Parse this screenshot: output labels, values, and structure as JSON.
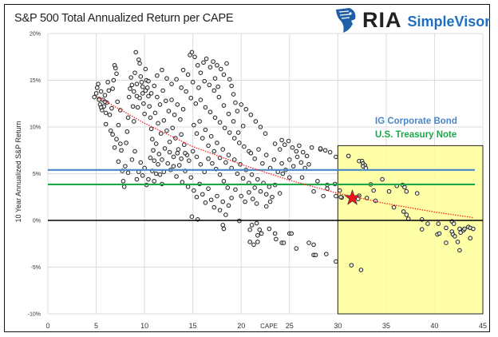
{
  "header": {
    "title": "S&P 500 Total Annualized Return per CAPE"
  },
  "logo": {
    "mark": "RIA",
    "brand": "SimpleVisor",
    "icon": "eagle-head-icon"
  },
  "chart_data": {
    "type": "scatter",
    "title": "S&P 500 Total Annualized Return per CAPE",
    "xlabel": "CAPE",
    "ylabel": "10 Year Annualized S&P Return",
    "xlim": [
      0,
      45
    ],
    "ylim": [
      -10,
      20
    ],
    "x_ticks": [
      "0",
      "5",
      "10",
      "15",
      "20",
      "25",
      "30",
      "35",
      "40",
      "45"
    ],
    "y_ticks": [
      "-10%",
      "-5%",
      "0%",
      "5%",
      "10%",
      "15%",
      "20%"
    ],
    "y_tick_values": [
      -10,
      -5,
      0,
      5,
      10,
      15,
      20
    ],
    "x_tick_values": [
      0,
      5,
      10,
      15,
      20,
      25,
      30,
      35,
      40,
      45
    ],
    "grid": true,
    "colors": {
      "points": "#222222",
      "trend": "#ff2020",
      "corporate": "#4a86c8",
      "treasury": "#1aa84a",
      "zero": "#000000",
      "highlight": "#ffff99",
      "star": "#e8141e"
    },
    "reference_lines": [
      {
        "name": "IG Corporate Bond",
        "y": 5.4,
        "color": "#4a86c8"
      },
      {
        "name": "U.S. Treasury Note",
        "y": 3.85,
        "color": "#1aa84a"
      }
    ],
    "highlight_region": {
      "x": [
        30,
        45
      ],
      "y": [
        -10,
        8
      ]
    },
    "current_value": {
      "x": 31.5,
      "y": 2.4
    },
    "trendline": [
      [
        5,
        13.3
      ],
      [
        10,
        10.4
      ],
      [
        15,
        7.9
      ],
      [
        20,
        6.0
      ],
      [
        25,
        4.3
      ],
      [
        30,
        2.9
      ],
      [
        35,
        1.8
      ],
      [
        40,
        0.9
      ],
      [
        44,
        0.3
      ]
    ],
    "points": [
      [
        4.8,
        13.2
      ],
      [
        5,
        13.6
      ],
      [
        5.1,
        14.2
      ],
      [
        5.2,
        14.6
      ],
      [
        5.3,
        13
      ],
      [
        5.4,
        12.4
      ],
      [
        5.5,
        13.8
      ],
      [
        5.6,
        11.8
      ],
      [
        5.7,
        12.9
      ],
      [
        5.8,
        12.2
      ],
      [
        5.9,
        13.4
      ],
      [
        6,
        11.5
      ],
      [
        6.1,
        12.6
      ],
      [
        6.2,
        14.8
      ],
      [
        6.3,
        13.9
      ],
      [
        5.9,
        12.7
      ],
      [
        5.5,
        12.1
      ],
      [
        5.3,
        12.9
      ],
      [
        6,
        10.3
      ],
      [
        6.4,
        11.3
      ],
      [
        6.5,
        9.6
      ],
      [
        6.6,
        12
      ],
      [
        6.7,
        14.1
      ],
      [
        6.8,
        15
      ],
      [
        6.9,
        16.6
      ],
      [
        7,
        16.3
      ],
      [
        7.1,
        15.7
      ],
      [
        7.2,
        12.7
      ],
      [
        7.3,
        10.2
      ],
      [
        7.5,
        11.8
      ],
      [
        6.7,
        9.2
      ],
      [
        6.9,
        7.8
      ],
      [
        7.1,
        8.7
      ],
      [
        7.3,
        6.3
      ],
      [
        7.5,
        8.2
      ],
      [
        7.6,
        7.5
      ],
      [
        7.7,
        5.3
      ],
      [
        7.8,
        4.2
      ],
      [
        7.9,
        3.6
      ],
      [
        8,
        5.8
      ],
      [
        8.1,
        8.3
      ],
      [
        8.2,
        9.5
      ],
      [
        8.3,
        11
      ],
      [
        8.4,
        13.2
      ],
      [
        8.5,
        14.1
      ],
      [
        8.6,
        15.3
      ],
      [
        8.7,
        14.5
      ],
      [
        8.8,
        12.2
      ],
      [
        8.9,
        10.6
      ],
      [
        9,
        15.8
      ],
      [
        9.1,
        18
      ],
      [
        9.2,
        13.3
      ],
      [
        9.3,
        12.1
      ],
      [
        9.4,
        17.2
      ],
      [
        9.5,
        16.8
      ],
      [
        9.6,
        15.4
      ],
      [
        9.7,
        14.8
      ],
      [
        9.8,
        13.6
      ],
      [
        9.9,
        12.5
      ],
      [
        10,
        11.4
      ],
      [
        10.1,
        16.2
      ],
      [
        10.2,
        15
      ],
      [
        10.3,
        14.2
      ],
      [
        10.4,
        13.3
      ],
      [
        10.5,
        12.2
      ],
      [
        10.6,
        11
      ],
      [
        10.7,
        9.8
      ],
      [
        10.8,
        8.7
      ],
      [
        10.9,
        7.5
      ],
      [
        11,
        6.4
      ],
      [
        8.3,
        5.1
      ],
      [
        8.7,
        6.5
      ],
      [
        9,
        7.4
      ],
      [
        9.2,
        4.4
      ],
      [
        9.4,
        5.2
      ],
      [
        9.6,
        6.2
      ],
      [
        9.8,
        4.8
      ],
      [
        10,
        5.6
      ],
      [
        10.2,
        3.8
      ],
      [
        10.4,
        4.4
      ],
      [
        10.6,
        6.7
      ],
      [
        10.8,
        5.3
      ],
      [
        11,
        4.2
      ],
      [
        11.2,
        5
      ],
      [
        11.4,
        6
      ],
      [
        11.6,
        4.9
      ],
      [
        11.8,
        3.9
      ],
      [
        12,
        5.2
      ],
      [
        8.9,
        13.8
      ],
      [
        9.2,
        14.6
      ],
      [
        9.5,
        13.1
      ],
      [
        9.8,
        14.3
      ],
      [
        10.1,
        13.9
      ],
      [
        10.4,
        14.9
      ],
      [
        10.7,
        13.6
      ],
      [
        11,
        14.4
      ],
      [
        11.3,
        13.2
      ],
      [
        11.6,
        12.4
      ],
      [
        11.9,
        13.9
      ],
      [
        12.2,
        12.8
      ],
      [
        12.5,
        11.7
      ],
      [
        12.8,
        12.9
      ],
      [
        13.1,
        11.3
      ],
      [
        13.4,
        12.4
      ],
      [
        13.7,
        10.8
      ],
      [
        14,
        11.9
      ],
      [
        11.1,
        11.5
      ],
      [
        11.4,
        10.4
      ],
      [
        11.7,
        9.3
      ],
      [
        12,
        10.7
      ],
      [
        12.3,
        9.6
      ],
      [
        12.6,
        8.4
      ],
      [
        12.9,
        9.9
      ],
      [
        13.2,
        8.8
      ],
      [
        13.5,
        7.6
      ],
      [
        13.8,
        9.2
      ],
      [
        14.1,
        8.1
      ],
      [
        14.4,
        7
      ],
      [
        11.2,
        8.2
      ],
      [
        11.5,
        7.1
      ],
      [
        11.8,
        6.5
      ],
      [
        12.1,
        7.7
      ],
      [
        12.4,
        6.1
      ],
      [
        12.7,
        5.4
      ],
      [
        13,
        6.8
      ],
      [
        13.3,
        4.7
      ],
      [
        13.6,
        5.9
      ],
      [
        13.9,
        4.1
      ],
      [
        14.2,
        5.3
      ],
      [
        14.5,
        3.6
      ],
      [
        14.8,
        4.6
      ],
      [
        15.1,
        3.2
      ],
      [
        15.4,
        2.5
      ],
      [
        15.7,
        3.9
      ],
      [
        16,
        2.8
      ],
      [
        16.3,
        1.9
      ],
      [
        16.6,
        3.4
      ],
      [
        16.9,
        2.2
      ],
      [
        17.2,
        1.4
      ],
      [
        17.5,
        2.6
      ],
      [
        17.8,
        1.1
      ],
      [
        18.1,
        2
      ],
      [
        18.4,
        0.6
      ],
      [
        18.7,
        1.6
      ],
      [
        14.9,
        0.4
      ],
      [
        15.5,
        0.1
      ],
      [
        11.3,
        15.5
      ],
      [
        11.8,
        16.1
      ],
      [
        12.3,
        15.2
      ],
      [
        12.8,
        14.6
      ],
      [
        13.3,
        15.1
      ],
      [
        13.8,
        14.2
      ],
      [
        14.3,
        13.8
      ],
      [
        14.8,
        13.1
      ],
      [
        15.3,
        12.5
      ],
      [
        15.8,
        12.9
      ],
      [
        16.3,
        12.1
      ],
      [
        16.8,
        11.6
      ],
      [
        17.3,
        11
      ],
      [
        17.8,
        10.5
      ],
      [
        18.3,
        9.9
      ],
      [
        18.8,
        9.4
      ],
      [
        19.3,
        8.8
      ],
      [
        19.8,
        8.3
      ],
      [
        20.3,
        7.9
      ],
      [
        20.8,
        7.4
      ],
      [
        14.7,
        17.7
      ],
      [
        14.9,
        18
      ],
      [
        15.2,
        17.5
      ],
      [
        15.5,
        16.6
      ],
      [
        15.8,
        15.8
      ],
      [
        16.1,
        16.9
      ],
      [
        16.4,
        17.3
      ],
      [
        16.8,
        16.4
      ],
      [
        17.1,
        17
      ],
      [
        17.5,
        16.6
      ],
      [
        17.9,
        16.2
      ],
      [
        18.2,
        15.6
      ],
      [
        18.5,
        16.8
      ],
      [
        18.8,
        15.1
      ],
      [
        19,
        14.4
      ],
      [
        19.2,
        13.5
      ],
      [
        19.4,
        12.6
      ],
      [
        17.3,
        15.2
      ],
      [
        17.6,
        14.3
      ],
      [
        15.1,
        10.2
      ],
      [
        15.4,
        9.3
      ],
      [
        15.7,
        10.6
      ],
      [
        16,
        8.8
      ],
      [
        16.3,
        9.7
      ],
      [
        16.6,
        8
      ],
      [
        16.9,
        9
      ],
      [
        17.2,
        7.4
      ],
      [
        17.5,
        8.3
      ],
      [
        17.8,
        6.7
      ],
      [
        18.1,
        7.6
      ],
      [
        18.4,
        6.2
      ],
      [
        18.7,
        7
      ],
      [
        19,
        5.6
      ],
      [
        19.3,
        6.5
      ],
      [
        19.6,
        5
      ],
      [
        19.9,
        6
      ],
      [
        20.2,
        4.5
      ],
      [
        20.5,
        5.4
      ],
      [
        20.8,
        4
      ],
      [
        21.1,
        4.9
      ],
      [
        21.4,
        3.5
      ],
      [
        21.7,
        4.4
      ],
      [
        22,
        3.1
      ],
      [
        22.3,
        4
      ],
      [
        22.6,
        2.8
      ],
      [
        22.9,
        3.6
      ],
      [
        23.2,
        2.5
      ],
      [
        20,
        2.6
      ],
      [
        20.4,
        2
      ],
      [
        20.8,
        3
      ],
      [
        21.2,
        2.3
      ],
      [
        21.6,
        1.8
      ],
      [
        19.4,
        3.3
      ],
      [
        19,
        2.4
      ],
      [
        18.6,
        3.5
      ],
      [
        18.2,
        4.2
      ],
      [
        17.8,
        4.9
      ],
      [
        17.4,
        5.5
      ],
      [
        17,
        6.1
      ],
      [
        16.6,
        6.6
      ],
      [
        16.2,
        5.2
      ],
      [
        15.8,
        6
      ],
      [
        15.4,
        6.8
      ],
      [
        15,
        7.4
      ],
      [
        14.6,
        6.4
      ],
      [
        14.2,
        7.2
      ],
      [
        13.8,
        6.6
      ],
      [
        13.4,
        7.2
      ],
      [
        13,
        5.8
      ],
      [
        12.6,
        7.3
      ],
      [
        21,
        7.2
      ],
      [
        21.4,
        6.6
      ],
      [
        21.8,
        7.6
      ],
      [
        22.2,
        6.1
      ],
      [
        22.6,
        7
      ],
      [
        23,
        5.6
      ],
      [
        23.4,
        6.5
      ],
      [
        23.8,
        5.2
      ],
      [
        24.2,
        6.1
      ],
      [
        24.6,
        5.4
      ],
      [
        25,
        6.5
      ],
      [
        25.4,
        5.8
      ],
      [
        25.8,
        6.8
      ],
      [
        26.2,
        6.2
      ],
      [
        26.6,
        5.6
      ],
      [
        27,
        6
      ],
      [
        23.5,
        8.2
      ],
      [
        24,
        7.6
      ],
      [
        24.2,
        8.6
      ],
      [
        24.5,
        8.1
      ],
      [
        24.9,
        8.5
      ],
      [
        25.3,
        7.8
      ],
      [
        25.7,
        7.4
      ],
      [
        26,
        8
      ],
      [
        26.4,
        7.3
      ],
      [
        26.8,
        6.9
      ],
      [
        27.3,
        7.8
      ],
      [
        28.2,
        7.6
      ],
      [
        28.7,
        7.5
      ],
      [
        29.2,
        7.3
      ],
      [
        22.5,
        9.3
      ],
      [
        22,
        10
      ],
      [
        21.5,
        10.6
      ],
      [
        21,
        11.3
      ],
      [
        20.5,
        11.9
      ],
      [
        20,
        12.4
      ],
      [
        19.6,
        11.7
      ],
      [
        20.2,
        10.1
      ],
      [
        19.7,
        9.4
      ],
      [
        19.2,
        10.6
      ],
      [
        18.7,
        11.4
      ],
      [
        18.2,
        12.3
      ],
      [
        17.7,
        13.2
      ],
      [
        17.2,
        13.9
      ],
      [
        16.7,
        14.5
      ],
      [
        16.2,
        14.9
      ],
      [
        15.6,
        14.2
      ],
      [
        15,
        14.8
      ],
      [
        14.5,
        15.6
      ],
      [
        14,
        16.1
      ],
      [
        24.3,
        5
      ],
      [
        25,
        4.6
      ],
      [
        26.3,
        4.6
      ],
      [
        27.9,
        4.2
      ],
      [
        27.5,
        3.1
      ],
      [
        28.5,
        2.6
      ],
      [
        28.9,
        3.8
      ],
      [
        28.9,
        3.4
      ],
      [
        28.2,
        7.7
      ],
      [
        29.8,
        6.8
      ],
      [
        29.7,
        3.9
      ],
      [
        29.8,
        2.6
      ],
      [
        23.5,
        3.8
      ],
      [
        24,
        2.9
      ],
      [
        22.6,
        1.5
      ],
      [
        23,
        2
      ],
      [
        18.1,
        -0.5
      ],
      [
        18.2,
        -0.9
      ],
      [
        19.8,
        -0.05
      ],
      [
        21.1,
        -0.5
      ],
      [
        20.9,
        -1
      ],
      [
        21.6,
        -0.3
      ],
      [
        21.9,
        -1
      ],
      [
        21.7,
        -1.6
      ],
      [
        22.1,
        -1.4
      ],
      [
        20.9,
        -2.3
      ],
      [
        21.3,
        -2.6
      ],
      [
        21.7,
        -2.3
      ],
      [
        22.9,
        -0.9
      ],
      [
        23.5,
        -1.4
      ],
      [
        23.6,
        -2
      ],
      [
        24.2,
        -2.4
      ],
      [
        24.4,
        -2.4
      ],
      [
        25,
        -1.4
      ],
      [
        25.2,
        -1.4
      ],
      [
        25.7,
        -3
      ],
      [
        27,
        -2.4
      ],
      [
        27.5,
        -2.6
      ],
      [
        27.5,
        -3.7
      ],
      [
        27.7,
        -3.7
      ],
      [
        28.8,
        -3.6
      ],
      [
        29.8,
        -4.4
      ],
      [
        31.1,
        6.9
      ],
      [
        32.2,
        6.35
      ],
      [
        32.5,
        6.35
      ],
      [
        32.6,
        6.1
      ],
      [
        32.8,
        5.9
      ],
      [
        32.6,
        5.8
      ],
      [
        32.9,
        5.6
      ],
      [
        34.6,
        4.4
      ],
      [
        33.4,
        3.85
      ],
      [
        33.7,
        3.2
      ],
      [
        30.2,
        3.2
      ],
      [
        30.4,
        2.45
      ],
      [
        30.3,
        2.5
      ],
      [
        32.2,
        2.65
      ],
      [
        32.1,
        2.3
      ],
      [
        33,
        2.4
      ],
      [
        33.9,
        2.1
      ],
      [
        35.3,
        3.1
      ],
      [
        36.1,
        3.7
      ],
      [
        36.7,
        3.8
      ],
      [
        36.9,
        3.55
      ],
      [
        37.1,
        3.1
      ],
      [
        38.2,
        2.9
      ],
      [
        35.8,
        1.4
      ],
      [
        36.8,
        0.95
      ],
      [
        37.1,
        0.6
      ],
      [
        37.3,
        0.17
      ],
      [
        38.7,
        0.1
      ],
      [
        39.3,
        -0.35
      ],
      [
        38.7,
        -0.95
      ],
      [
        40.4,
        -0.35
      ],
      [
        41.2,
        -0.8
      ],
      [
        40.3,
        -1.5
      ],
      [
        40.5,
        -1.4
      ],
      [
        41.2,
        -2.4
      ],
      [
        41.8,
        -0.1
      ],
      [
        42,
        -0.35
      ],
      [
        41.8,
        -1.2
      ],
      [
        41.9,
        -1.5
      ],
      [
        42.1,
        -1.7
      ],
      [
        42.6,
        -0.9
      ],
      [
        42.7,
        -1.3
      ],
      [
        43,
        -1.05
      ],
      [
        43.1,
        -0.9
      ],
      [
        43.5,
        -0.7
      ],
      [
        43.7,
        -0.8
      ],
      [
        44,
        -0.9
      ],
      [
        43.7,
        -1.9
      ],
      [
        42.4,
        -2.3
      ],
      [
        42.6,
        -3.2
      ],
      [
        31.4,
        -4.8
      ],
      [
        32.4,
        -5.3
      ]
    ]
  }
}
